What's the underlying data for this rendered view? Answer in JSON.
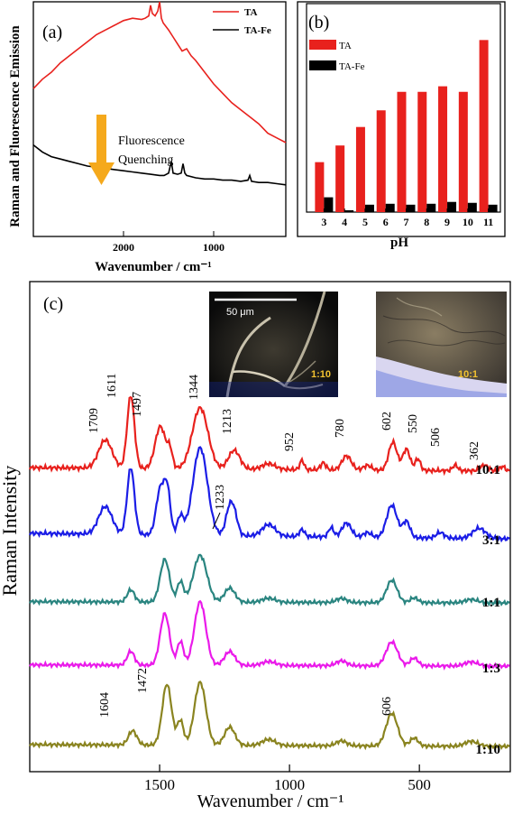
{
  "colors": {
    "TA": "#e8211d",
    "TA_Fe": "#000000",
    "arrow": "#f5a91c",
    "10:1": "#e8211d",
    "3:1": "#1b1de6",
    "1:1": "#2a8580",
    "1:3": "#ea1aea",
    "1:10": "#8a8420"
  },
  "panel_a": {
    "label": "(a)",
    "annotation_line1": "Fluorescence",
    "annotation_line2": "Quenching"
  },
  "panel_b": {
    "label": "(b)"
  },
  "panel_c": {
    "label": "(c)",
    "inset_left_label": "1:10",
    "inset_right_label": "10:1",
    "scale_bar": "50 μm"
  },
  "chart_data": [
    {
      "id": "a",
      "type": "line",
      "xlabel": "Wavenumber / cm⁻¹",
      "ylabel": "Raman and Fluorescence Emission",
      "xlim": [
        3000,
        200
      ],
      "xticks": [
        "2000",
        "1000"
      ],
      "xtick_values": [
        2000,
        1000
      ],
      "legend_position": "top-right",
      "series": [
        {
          "name": "TA",
          "x": [
            3000,
            2900,
            2800,
            2700,
            2600,
            2500,
            2400,
            2300,
            2200,
            2100,
            2000,
            1900,
            1800,
            1760,
            1720,
            1700,
            1680,
            1650,
            1620,
            1600,
            1580,
            1560,
            1500,
            1450,
            1400,
            1350,
            1300,
            1250,
            1200,
            1100,
            1000,
            900,
            800,
            700,
            600,
            500,
            400,
            300,
            200
          ],
          "y": [
            0.63,
            0.67,
            0.7,
            0.74,
            0.77,
            0.8,
            0.83,
            0.86,
            0.88,
            0.9,
            0.92,
            0.93,
            0.925,
            0.93,
            0.94,
            0.985,
            0.95,
            0.94,
            0.96,
            1.0,
            0.93,
            0.91,
            0.88,
            0.85,
            0.82,
            0.79,
            0.8,
            0.77,
            0.75,
            0.7,
            0.65,
            0.61,
            0.57,
            0.54,
            0.51,
            0.48,
            0.44,
            0.42,
            0.4
          ]
        },
        {
          "name": "TA-Fe",
          "x": [
            3000,
            2900,
            2800,
            2700,
            2600,
            2500,
            2400,
            2300,
            2200,
            2100,
            2000,
            1900,
            1800,
            1700,
            1600,
            1550,
            1500,
            1470,
            1450,
            1400,
            1360,
            1340,
            1320,
            1300,
            1200,
            1100,
            1000,
            900,
            800,
            700,
            620,
            600,
            580,
            500,
            400,
            300,
            200
          ],
          "y": [
            0.39,
            0.36,
            0.34,
            0.33,
            0.32,
            0.31,
            0.3,
            0.295,
            0.29,
            0.285,
            0.28,
            0.275,
            0.27,
            0.265,
            0.26,
            0.26,
            0.27,
            0.32,
            0.27,
            0.265,
            0.27,
            0.31,
            0.27,
            0.26,
            0.25,
            0.245,
            0.245,
            0.24,
            0.24,
            0.235,
            0.24,
            0.26,
            0.235,
            0.23,
            0.23,
            0.225,
            0.22
          ]
        }
      ]
    },
    {
      "id": "b",
      "type": "bar",
      "xlabel": "pH",
      "categories": [
        "3",
        "4",
        "5",
        "6",
        "7",
        "8",
        "9",
        "10",
        "11"
      ],
      "legend_position": "top-left",
      "series": [
        {
          "name": "TA",
          "values": [
            0.27,
            0.36,
            0.46,
            0.55,
            0.65,
            0.65,
            0.68,
            0.65,
            0.93
          ]
        },
        {
          "name": "TA-Fe",
          "values": [
            0.08,
            0.01,
            0.04,
            0.045,
            0.04,
            0.045,
            0.055,
            0.05,
            0.04
          ]
        }
      ]
    },
    {
      "id": "c",
      "type": "line",
      "xlabel": "Wavenumber / cm⁻¹",
      "ylabel": "Raman Intensity",
      "xlim": [
        2000,
        150
      ],
      "xticks": [
        "1500",
        "1000",
        "500"
      ],
      "xtick_values": [
        1500,
        1000,
        500
      ],
      "series": [
        {
          "name": "10:1",
          "offset": 4
        },
        {
          "name": "3:1",
          "offset": 3
        },
        {
          "name": "1:1",
          "offset": 2
        },
        {
          "name": "1:3",
          "offset": 1
        },
        {
          "name": "1:10",
          "offset": 0
        }
      ],
      "peaks_top": [
        {
          "label": "1709",
          "x": 1709
        },
        {
          "label": "1611",
          "x": 1611
        },
        {
          "label": "1497",
          "x": 1497
        },
        {
          "label": "1344",
          "x": 1344
        },
        {
          "label": "1213",
          "x": 1213
        },
        {
          "label": "952",
          "x": 952
        },
        {
          "label": "780",
          "x": 780
        },
        {
          "label": "602",
          "x": 602
        },
        {
          "label": "550",
          "x": 550
        },
        {
          "label": "506",
          "x": 506
        },
        {
          "label": "362",
          "x": 362
        }
      ],
      "peaks_other": [
        {
          "label": "1233",
          "x": 1233
        },
        {
          "label": "1604",
          "x": 1604
        },
        {
          "label": "1472",
          "x": 1472
        },
        {
          "label": "606",
          "x": 606
        }
      ]
    }
  ]
}
